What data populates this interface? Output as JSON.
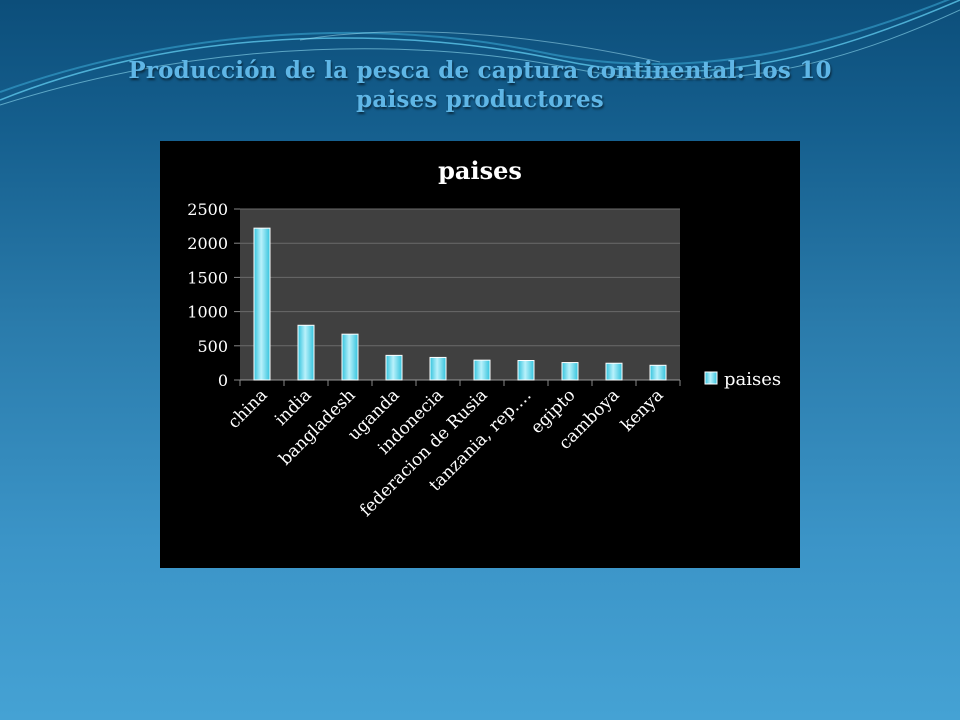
{
  "slide": {
    "title": "Producción de la pesca de captura continental: los 10 paises productores"
  },
  "colors": {
    "bar_fill": "#33c3dd",
    "bar_highlight": "#b9f1fb",
    "plot_background": "#404040",
    "chart_background": "#000000"
  },
  "chart_data": {
    "type": "bar",
    "title": "paises",
    "categories": [
      "china",
      "india",
      "bangladesh",
      "uganda",
      "indonecia",
      "federacion de Rusia",
      "tanzania, rep.…",
      "egipto",
      "camboya",
      "kenya"
    ],
    "series": [
      {
        "name": "paises",
        "values": [
          2220,
          800,
          670,
          360,
          330,
          290,
          285,
          255,
          245,
          215
        ]
      }
    ],
    "ylim": [
      0,
      2500
    ],
    "yticks": [
      0,
      500,
      1000,
      1500,
      2000,
      2500
    ],
    "grid": true,
    "legend": "right"
  }
}
